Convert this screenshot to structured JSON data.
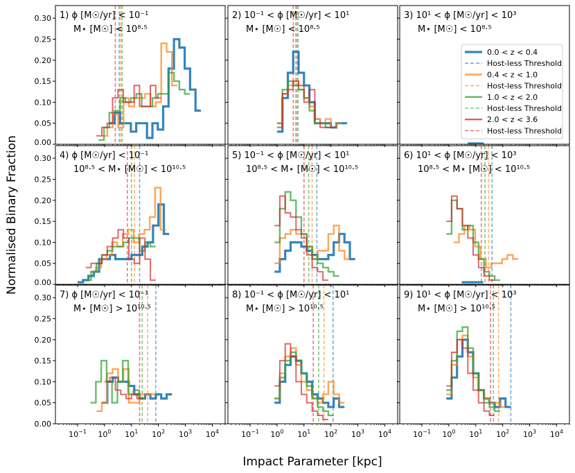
{
  "chart_data": {
    "type": "step-histogram-grid",
    "figure": {
      "ylabel": "Normalised Binary Fraction",
      "xlabel": "Impact Parameter [kpc]",
      "xscale": "log",
      "xlim": [
        0.015,
        30000
      ],
      "ylim": [
        0,
        0.33
      ],
      "xticks": [
        {
          "value": 0.1,
          "base": "10",
          "exp": "−1"
        },
        {
          "value": 1,
          "base": "10",
          "exp": "0"
        },
        {
          "value": 10,
          "base": "10",
          "exp": "1"
        },
        {
          "value": 100,
          "base": "10",
          "exp": "2"
        },
        {
          "value": 1000,
          "base": "10",
          "exp": "3"
        },
        {
          "value": 10000,
          "base": "10",
          "exp": "4"
        }
      ],
      "yticks": [
        "0.00",
        "0.05",
        "0.10",
        "0.15",
        "0.20",
        "0.25",
        "0.30"
      ],
      "ytick_values": [
        0,
        0.05,
        0.1,
        0.15,
        0.2,
        0.25,
        0.3
      ]
    },
    "legend": {
      "entries": [
        {
          "label": "0.0 < z < 0.4",
          "color": "#1f77b4",
          "style": "solid"
        },
        {
          "label": "Host-less Threshold",
          "color": "#1f77b4",
          "style": "dashed"
        },
        {
          "label": "0.4 < z < 1.0",
          "color": "#ff7f0e",
          "style": "solid"
        },
        {
          "label": "Host-less Threshold",
          "color": "#ff7f0e",
          "style": "dashed"
        },
        {
          "label": "1.0 < z < 2.0",
          "color": "#2ca02c",
          "style": "solid"
        },
        {
          "label": "Host-less Threshold",
          "color": "#2ca02c",
          "style": "dashed"
        },
        {
          "label": "2.0 < z < 3.6",
          "color": "#d62728",
          "style": "solid"
        },
        {
          "label": "Host-less Threshold",
          "color": "#d62728",
          "style": "dashed"
        }
      ]
    },
    "series_names": [
      "0.0 < z < 0.4",
      "0.4 < z < 1.0",
      "1.0 < z < 2.0",
      "2.0 < z < 3.6"
    ],
    "colors": [
      "#1f77b4",
      "#ff7f0e",
      "#2ca02c",
      "#d62728"
    ],
    "panels": [
      {
        "id": "1",
        "line1": "1) ϕ [M☉/yr] < 10⁻¹",
        "line2": "M⋆ [M☉] < 10⁸·⁵",
        "series": [
          {
            "start": 1.5,
            "values": [
              0.05,
              0.075,
              0.05,
              0.05,
              0.03,
              0.05,
              0.05,
              0.015,
              0.05,
              0.035,
              0.09,
              0.18,
              0.25,
              0.23,
              0.18,
              0.13,
              0.08
            ]
          },
          {
            "start": 0.8,
            "values": [
              0.02,
              0.04,
              0.07,
              0.04,
              0.11,
              0.09,
              0.11,
              0.11,
              0.12,
              0.09,
              0.1,
              0.24,
              0.22,
              0.14
            ]
          },
          {
            "start": 0.6,
            "values": [
              0.01,
              0.04,
              0.075,
              0.08,
              0.11,
              0.1,
              0.11,
              0.12,
              0.09,
              0.09,
              0.11,
              0.12,
              0.12,
              0.17,
              0.15,
              0.13,
              0.12
            ]
          },
          {
            "start": 0.5,
            "values": [
              0.02,
              0.04,
              0.05,
              0.11,
              0.13,
              0.1,
              0.1,
              0.14,
              0.09,
              0.09,
              0.14,
              0.11
            ]
          }
        ],
        "thresholds": [
          3.5,
          4.0,
          4.5,
          2.5
        ]
      },
      {
        "id": "2",
        "line1": "2) 10⁻¹ < ϕ [M☉/yr] < 10¹",
        "line2": "M⋆ [M☉] < 10⁸·⁵",
        "series": [
          {
            "start": 1.0,
            "values": [
              0.03,
              0.11,
              0.17,
              0.22,
              0.17,
              0.14,
              0.1,
              0.05,
              0.05,
              0.05,
              0.04,
              0.05,
              0.05
            ]
          },
          {
            "start": 1.0,
            "values": [
              0.05,
              0.12,
              0.14,
              0.15,
              0.13,
              0.11,
              0.09,
              0.05,
              0.05,
              0.06,
              0.04,
              0.05
            ]
          },
          {
            "start": 1.0,
            "values": [
              0.05,
              0.13,
              0.15,
              0.14,
              0.13,
              0.11,
              0.08,
              0.05,
              0.05,
              0.04,
              0.04
            ]
          },
          {
            "start": 1.0,
            "values": [
              0.04,
              0.12,
              0.13,
              0.15,
              0.14,
              0.1,
              0.13,
              0.06,
              0.04,
              0.04,
              0.04
            ]
          }
        ],
        "thresholds": [
          5.0,
          5.5,
          6.0,
          4.0
        ]
      },
      {
        "id": "3",
        "line1": "3) 10¹ < ϕ [M☉/yr] < 10³",
        "line2": "M⋆ [M☉] < 10⁸·⁵",
        "series": [
          {
            "start": 5.0,
            "values": [
              0.002,
              0.002,
              0.002
            ]
          },
          {
            "start": 1.0,
            "values": []
          },
          {
            "start": 1.0,
            "values": []
          },
          {
            "start": 1.0,
            "values": []
          }
        ],
        "thresholds": [
          null,
          null,
          null,
          null
        ]
      },
      {
        "id": "4",
        "line1": "4) ϕ [M☉/yr] < 10⁻¹",
        "line2": "10⁸·⁵ < M⋆ [M☉] < 10¹⁰·⁵",
        "series": [
          {
            "start": 0.1,
            "values": [
              0.005,
              0.01,
              0.02,
              0.03,
              0.06,
              0.06,
              0.07,
              0.06,
              0.06,
              0.06,
              0.07,
              0.07,
              0.09,
              0.1,
              0.14,
              0.19,
              0.12
            ]
          },
          {
            "start": 0.3,
            "values": [
              0.03,
              0.04,
              0.06,
              0.07,
              0.1,
              0.09,
              0.12,
              0.13,
              0.1,
              0.12,
              0.13,
              0.16,
              0.23,
              0.13
            ]
          },
          {
            "start": 0.2,
            "values": [
              0.01,
              0.03,
              0.05,
              0.07,
              0.08,
              0.09,
              0.09,
              0.1,
              0.11,
              0.11,
              0.08,
              0.1,
              0.09
            ]
          },
          {
            "start": 0.2,
            "values": [
              0.04,
              0.05,
              0.05,
              0.07,
              0.09,
              0.11,
              0.13,
              0.11,
              0.06,
              0.05,
              0.11,
              0.06,
              0.01
            ]
          }
        ],
        "thresholds": [
          20,
          13,
          10,
          7
        ]
      },
      {
        "id": "5",
        "line1": "5) 10⁻¹ < ϕ [M☉/yr] < 10¹",
        "line2": "10⁸·⁵ < M⋆ [M☉] < 10¹⁰·⁵",
        "series": [
          {
            "start": 0.8,
            "values": [
              0.03,
              0.06,
              0.08,
              0.1,
              0.1,
              0.09,
              0.08,
              0.07,
              0.06,
              0.06,
              0.07,
              0.1,
              0.12,
              0.1,
              0.06
            ]
          },
          {
            "start": 0.8,
            "values": [
              0.05,
              0.11,
              0.12,
              0.13,
              0.12,
              0.12,
              0.09,
              0.06,
              0.08,
              0.08,
              0.12,
              0.14,
              0.08,
              0.06
            ]
          },
          {
            "start": 0.8,
            "values": [
              0.1,
              0.18,
              0.22,
              0.2,
              0.16,
              0.12,
              0.09,
              0.06,
              0.05,
              0.04,
              0.03,
              0.02
            ]
          },
          {
            "start": 0.8,
            "values": [
              0.14,
              0.21,
              0.17,
              0.16,
              0.13,
              0.11,
              0.07,
              0.04,
              0.03,
              0.01
            ]
          }
        ],
        "thresholds": [
          30,
          20,
          15,
          10
        ]
      },
      {
        "id": "6",
        "line1": "6) 10¹ < ϕ [M☉/yr] < 10³",
        "line2": "10⁸·⁵ < M⋆ [M☉] < 10¹⁰·⁵",
        "series": [
          {
            "start": 3.0,
            "values": [
              0.005,
              0.005,
              0.005,
              0.005
            ]
          },
          {
            "start": 1.5,
            "values": [
              0.1,
              0.12,
              0.14,
              0.13,
              0.09,
              0.06,
              0.04,
              0.05,
              0.05,
              0.06,
              0.07,
              0.06
            ]
          },
          {
            "start": 0.8,
            "values": [
              0.12,
              0.2,
              0.18,
              0.13,
              0.14,
              0.1,
              0.06,
              0.03,
              0.02,
              0.01
            ]
          },
          {
            "start": 0.8,
            "values": [
              0.15,
              0.21,
              0.18,
              0.14,
              0.11,
              0.07,
              0.04,
              0.02,
              0.01
            ]
          }
        ],
        "thresholds": [
          40,
          30,
          22,
          16
        ]
      },
      {
        "id": "7",
        "line1": "7) ϕ [M☉/yr] < 10⁻¹",
        "line2": "M⋆ [M☉] > 10¹⁰·⁵",
        "series": [
          {
            "start": 0.8,
            "values": [
              0.05,
              0.1,
              0.11,
              0.1,
              0.1,
              0.09,
              0.07,
              0.06,
              0.07,
              0.06,
              0.07,
              0.06,
              0.07
            ]
          },
          {
            "start": 0.5,
            "values": [
              0.03,
              0.05,
              0.12,
              0.13,
              0.1,
              0.13,
              0.05,
              0.05,
              0.07,
              0.07,
              0.07
            ]
          },
          {
            "start": 0.3,
            "values": [
              0.05,
              0.1,
              0.15,
              0.1,
              0.05,
              0.1,
              0.15,
              0.07,
              0.08,
              0.06
            ]
          },
          {
            "start": 1.0,
            "values": [
              0.1,
              0.11,
              0.08,
              0.07,
              0.06,
              0.07,
              0.06
            ]
          }
        ],
        "thresholds": [
          80,
          40,
          25,
          20
        ]
      },
      {
        "id": "8",
        "line1": "8) 10⁻¹ < ϕ [M☉/yr] < 10¹",
        "line2": "M⋆ [M☉] > 10¹⁰·⁵",
        "series": [
          {
            "start": 0.8,
            "values": [
              0.05,
              0.1,
              0.14,
              0.16,
              0.15,
              0.12,
              0.1,
              0.07,
              0.06,
              0.05,
              0.04,
              0.06,
              0.04
            ]
          },
          {
            "start": 0.8,
            "values": [
              0.06,
              0.12,
              0.16,
              0.18,
              0.14,
              0.1,
              0.08,
              0.06,
              0.05,
              0.07,
              0.1,
              0.07,
              0.05
            ]
          },
          {
            "start": 0.8,
            "values": [
              0.06,
              0.11,
              0.15,
              0.17,
              0.15,
              0.12,
              0.09,
              0.06,
              0.04,
              0.03,
              0.02
            ]
          },
          {
            "start": 0.8,
            "values": [
              0.09,
              0.15,
              0.19,
              0.16,
              0.1,
              0.07,
              0.05,
              0.03,
              0.02,
              0.01
            ]
          }
        ],
        "thresholds": [
          120,
          55,
          35,
          22
        ]
      },
      {
        "id": "9",
        "line1": "9) 10¹ < ϕ [M☉/yr] < 10³",
        "line2": "M⋆ [M☉] > 10¹⁰·⁵",
        "series": [
          {
            "start": 0.8,
            "values": [
              0.06,
              0.11,
              0.16,
              0.2,
              0.17,
              0.12,
              0.08,
              0.06,
              0.05,
              0.04,
              0.06,
              0.04
            ]
          },
          {
            "start": 0.8,
            "values": [
              0.07,
              0.14,
              0.2,
              0.21,
              0.16,
              0.11,
              0.08,
              0.06,
              0.05,
              0.05,
              0.04
            ]
          },
          {
            "start": 0.8,
            "values": [
              0.08,
              0.15,
              0.22,
              0.23,
              0.18,
              0.12,
              0.08,
              0.05,
              0.04,
              0.03
            ]
          },
          {
            "start": 0.8,
            "values": [
              0.09,
              0.17,
              0.2,
              0.18,
              0.12,
              0.08,
              0.05,
              0.03,
              0.02
            ]
          }
        ],
        "thresholds": [
          200,
          70,
          45,
          35
        ]
      }
    ]
  }
}
